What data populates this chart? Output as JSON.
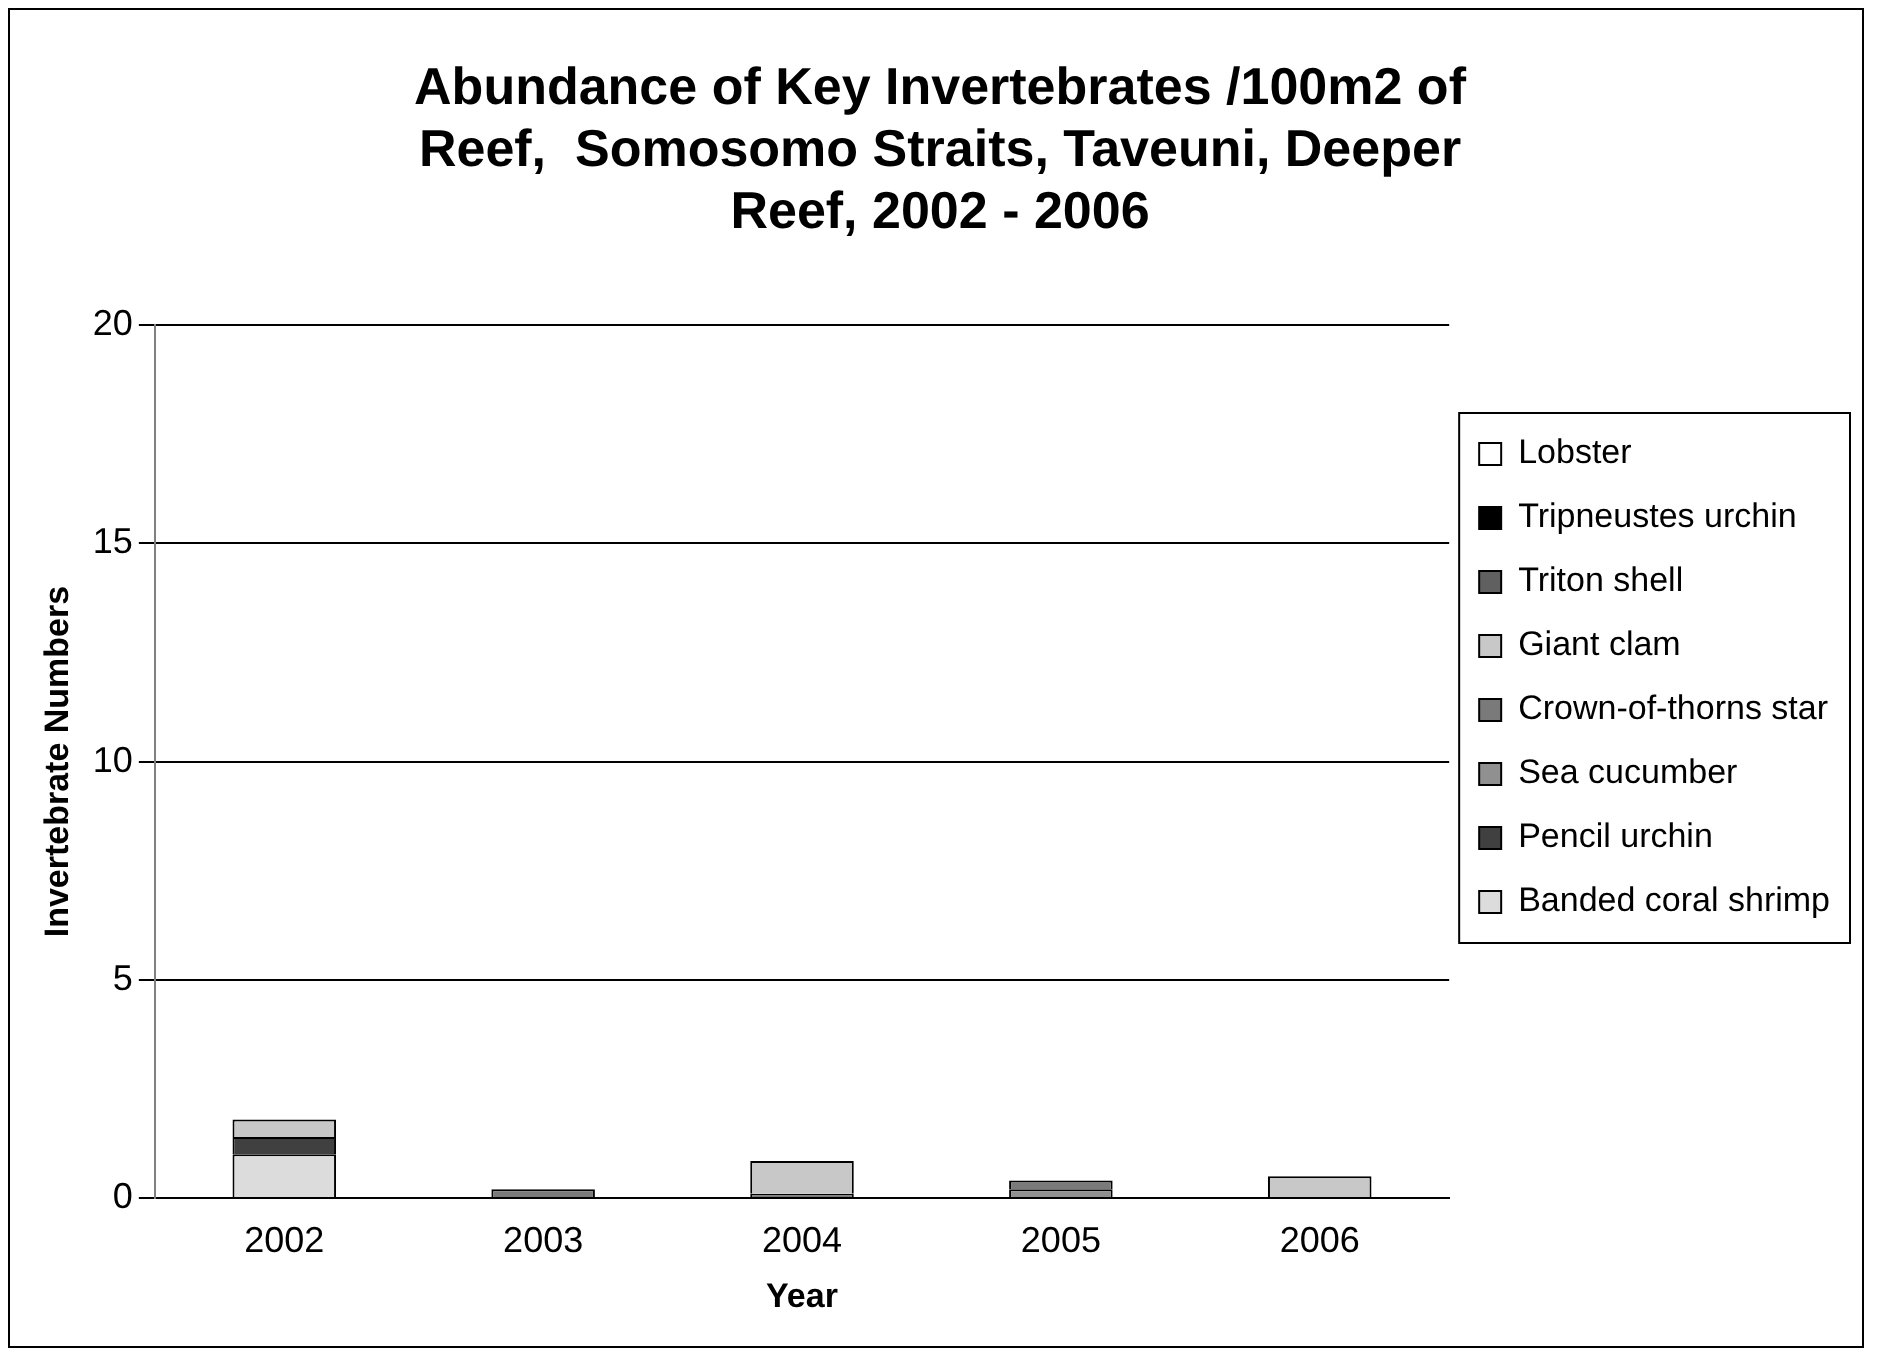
{
  "chart_data": {
    "type": "bar",
    "stacked": true,
    "title": "Abundance of Key Invertebrates /100m2 of Reef,  Somosomo Straits, Taveuni, Deeper Reef, 2002 - 2006",
    "xlabel": "Year",
    "ylabel": "Invertebrate Numbers",
    "categories": [
      "2002",
      "2003",
      "2004",
      "2005",
      "2006"
    ],
    "series": [
      {
        "name": "Banded coral shrimp",
        "color": "#dcdcdc",
        "values": [
          1.0,
          0,
          0,
          0,
          0
        ]
      },
      {
        "name": "Pencil urchin",
        "color": "#404040",
        "values": [
          0.4,
          0,
          0,
          0,
          0
        ]
      },
      {
        "name": "Sea cucumber",
        "color": "#909090",
        "values": [
          0,
          0,
          0,
          0.2,
          0
        ]
      },
      {
        "name": "Crown-of-thorns star",
        "color": "#7a7a7a",
        "values": [
          0,
          0.2,
          0.1,
          0.2,
          0
        ]
      },
      {
        "name": "Giant clam",
        "color": "#c8c8c8",
        "values": [
          0.4,
          0,
          0.75,
          0,
          0.5
        ]
      },
      {
        "name": "Triton shell",
        "color": "#606060",
        "values": [
          0,
          0,
          0,
          0,
          0
        ]
      },
      {
        "name": "Tripneustes urchin",
        "color": "#000000",
        "values": [
          0,
          0,
          0,
          0,
          0
        ]
      },
      {
        "name": "Lobster",
        "color": "#ffffff",
        "values": [
          0,
          0,
          0,
          0,
          0
        ]
      }
    ],
    "ylim": [
      0,
      20
    ],
    "yticks": [
      0,
      5,
      10,
      15,
      20
    ],
    "grid": "y",
    "legend": "right"
  }
}
